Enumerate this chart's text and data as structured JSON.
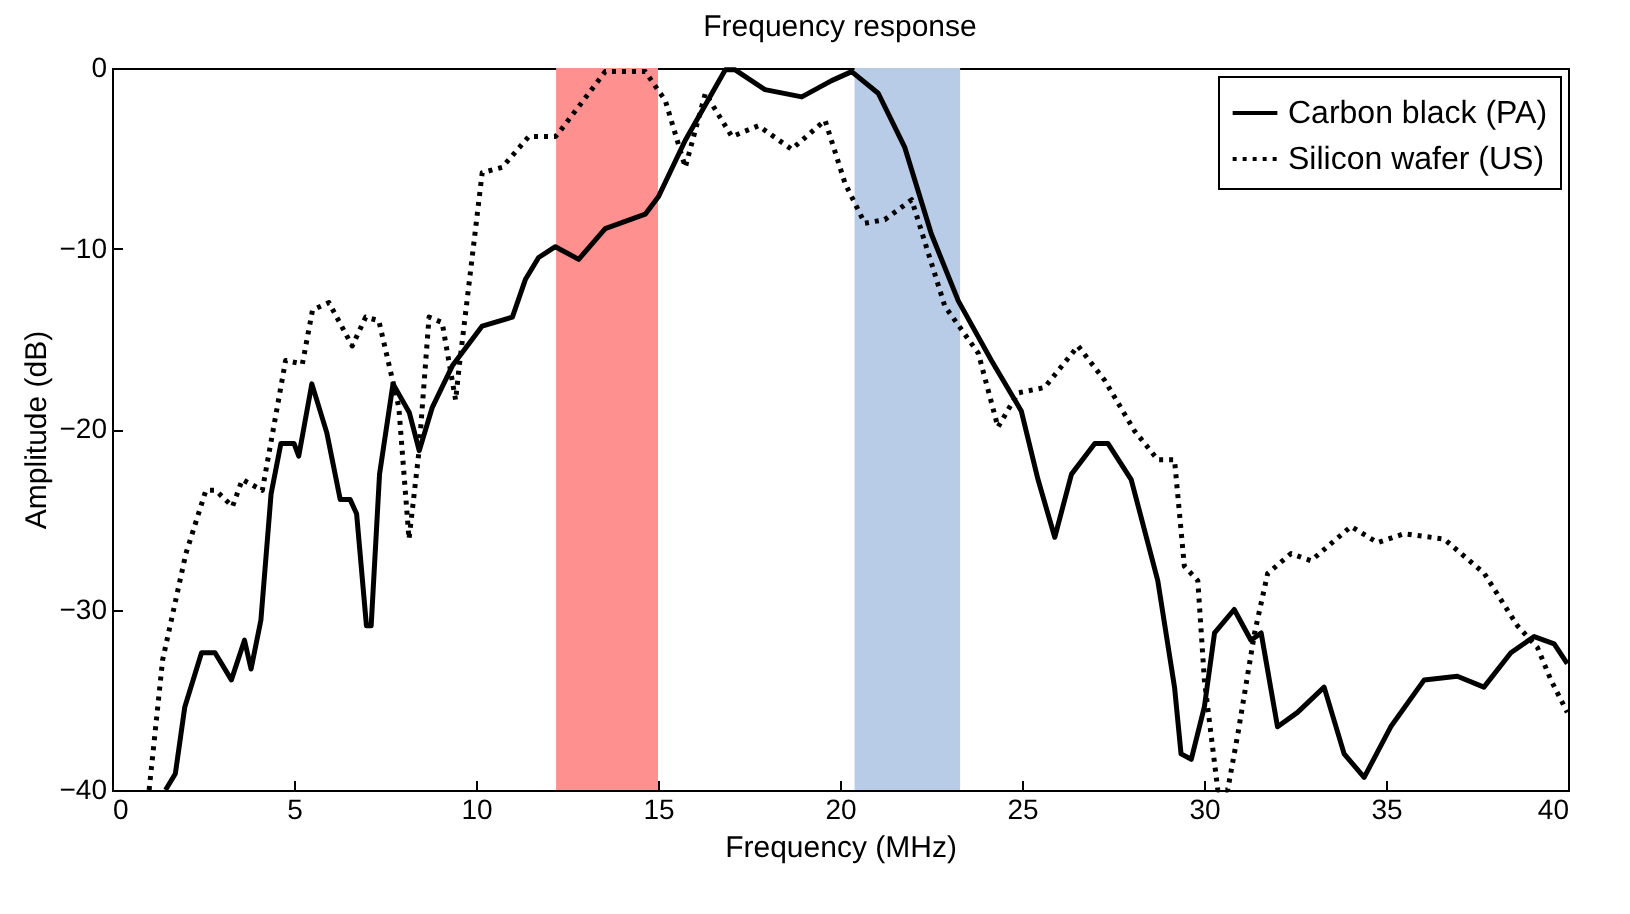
{
  "chart_data": {
    "type": "line",
    "title": "Frequency response",
    "xlabel": "Frequency (MHz)",
    "ylabel": "Amplitude (dB)",
    "xlim": [
      0,
      40
    ],
    "xticks": [
      0,
      5,
      10,
      15,
      20,
      25,
      30,
      35,
      40
    ],
    "ylim": [
      -40,
      0
    ],
    "yticks": [
      -40,
      -30,
      -20,
      -10,
      0
    ],
    "grid": false,
    "legend": "top right",
    "bands": [
      {
        "axis": "x",
        "from": 12.2,
        "to": 15.0,
        "color": "#ff9090"
      },
      {
        "axis": "x",
        "from": 20.4,
        "to": 23.3,
        "color": "#b8cce8"
      }
    ],
    "series": [
      {
        "name": "Carbon black (PA)",
        "color": "#000000",
        "line_style": "solid",
        "x": [
          1.47,
          1.74,
          2.0,
          2.46,
          2.83,
          3.28,
          3.64,
          3.82,
          4.09,
          4.37,
          4.64,
          5.0,
          5.13,
          5.49,
          5.9,
          6.27,
          6.54,
          6.72,
          6.99,
          7.12,
          7.35,
          7.72,
          8.17,
          8.44,
          8.8,
          9.35,
          10.17,
          11.0,
          11.36,
          11.72,
          12.18,
          12.82,
          13.55,
          14.65,
          15.02,
          15.75,
          16.85,
          17.12,
          17.94,
          18.95,
          19.77,
          20.32,
          21.05,
          21.78,
          22.51,
          23.25,
          24.16,
          24.98,
          25.44,
          25.9,
          26.36,
          27.0,
          27.36,
          28.0,
          28.73,
          29.19,
          29.37,
          29.65,
          30.01,
          30.29,
          30.83,
          31.29,
          31.57,
          32.02,
          32.57,
          33.3,
          33.85,
          34.4,
          35.13,
          36.05,
          36.96,
          37.69,
          38.43,
          39.07,
          39.62,
          39.98
        ],
        "values": [
          -40,
          -39.1,
          -35.4,
          -32.4,
          -32.4,
          -33.9,
          -31.7,
          -33.3,
          -30.6,
          -23.6,
          -20.8,
          -20.8,
          -21.5,
          -17.5,
          -20.2,
          -23.9,
          -23.9,
          -24.7,
          -30.9,
          -30.9,
          -22.5,
          -17.5,
          -19.1,
          -21.2,
          -18.8,
          -16.5,
          -14.3,
          -13.8,
          -11.7,
          -10.5,
          -9.9,
          -10.6,
          -8.9,
          -8.1,
          -7.1,
          -4.0,
          -0.1,
          -0.1,
          -1.2,
          -1.6,
          -0.7,
          -0.2,
          -1.4,
          -4.4,
          -9.2,
          -12.9,
          -16.2,
          -19.0,
          -22.8,
          -26.0,
          -22.5,
          -20.8,
          -20.8,
          -22.8,
          -28.4,
          -34.3,
          -38.0,
          -38.3,
          -35.4,
          -31.3,
          -30.0,
          -31.7,
          -31.3,
          -36.5,
          -35.7,
          -34.3,
          -38.0,
          -39.3,
          -36.5,
          -33.9,
          -33.7,
          -34.3,
          -32.4,
          -31.5,
          -31.9,
          -33.0
        ]
      },
      {
        "name": "Silicon wafer (US)",
        "color": "#000000",
        "line_style": "dotted",
        "x": [
          1.02,
          1.39,
          2.03,
          2.58,
          2.85,
          3.31,
          3.58,
          4.13,
          4.77,
          5.23,
          5.51,
          5.96,
          6.6,
          6.97,
          7.33,
          7.88,
          8.16,
          8.43,
          8.71,
          9.07,
          9.44,
          9.53,
          10.17,
          10.72,
          11.45,
          12.18,
          12.27,
          13.55,
          14.65,
          15.2,
          15.75,
          16.3,
          17.03,
          17.76,
          18.67,
          19.59,
          20.14,
          20.68,
          21.23,
          21.97,
          22.88,
          23.8,
          24.34,
          24.89,
          25.62,
          26.54,
          27.27,
          28.09,
          28.73,
          29.19,
          29.46,
          29.83,
          30.01,
          30.38,
          30.65,
          30.93,
          31.39,
          31.75,
          32.39,
          32.94,
          34.04,
          34.77,
          35.5,
          36.6,
          37.7,
          38.61,
          39.16,
          39.53,
          39.98
        ],
        "values": [
          -40,
          -32.8,
          -26.9,
          -23.4,
          -23.4,
          -24.3,
          -22.8,
          -23.4,
          -16.2,
          -16.4,
          -13.4,
          -13.0,
          -15.4,
          -13.8,
          -14.0,
          -18.8,
          -26.1,
          -21.3,
          -13.8,
          -14.1,
          -18.4,
          -16.7,
          -5.8,
          -5.5,
          -3.8,
          -3.8,
          -3.6,
          -0.2,
          -0.2,
          -1.8,
          -5.5,
          -1.4,
          -3.8,
          -3.2,
          -4.5,
          -2.9,
          -6.4,
          -8.6,
          -8.4,
          -7.3,
          -13.2,
          -15.8,
          -19.9,
          -18.0,
          -17.7,
          -15.4,
          -17.3,
          -20.1,
          -21.7,
          -21.7,
          -27.6,
          -28.4,
          -33.9,
          -40,
          -40,
          -36.9,
          -31.3,
          -28.0,
          -26.9,
          -27.3,
          -25.4,
          -26.3,
          -25.8,
          -26.1,
          -28.0,
          -30.9,
          -32.1,
          -33.9,
          -35.7
        ]
      }
    ]
  }
}
